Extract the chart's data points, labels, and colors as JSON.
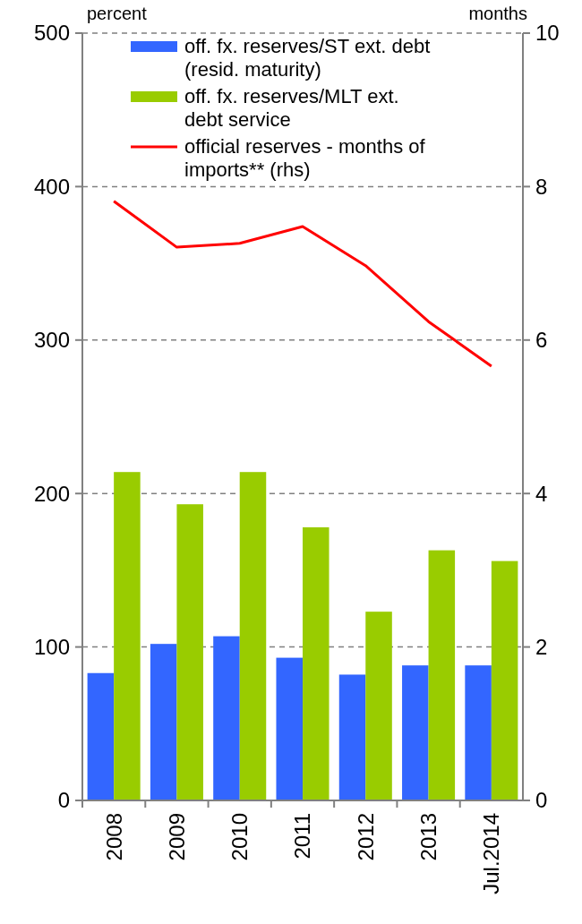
{
  "chart_data": {
    "type": "bar",
    "ylabel": "percent",
    "y2label": "months",
    "categories": [
      "2008",
      "2009",
      "2010",
      "2011",
      "2012",
      "2013",
      "Jul.2014"
    ],
    "series": [
      {
        "name": "off. fx. reserves/ST ext. debt (resid. maturity)",
        "color": "#3366ff",
        "values": [
          83,
          102,
          107,
          93,
          82,
          88,
          88
        ]
      },
      {
        "name": "off. fx. reserves/MLT ext. debt service",
        "color": "#99cc00",
        "values": [
          214,
          193,
          214,
          178,
          123,
          163,
          156
        ]
      },
      {
        "name": "official reserves - months of imports** (rhs)",
        "type": "line",
        "axis": "y2",
        "color": "#ff0000",
        "values": [
          7.81,
          7.21,
          7.26,
          7.48,
          6.97,
          6.24,
          5.66
        ]
      }
    ],
    "ylim": [
      0,
      500
    ],
    "yticks": [
      0,
      100,
      200,
      300,
      400,
      500
    ],
    "y2lim": [
      0,
      10
    ],
    "y2ticks": [
      0,
      2,
      4,
      6,
      8,
      10
    ],
    "grid": "y",
    "legend": "top"
  }
}
